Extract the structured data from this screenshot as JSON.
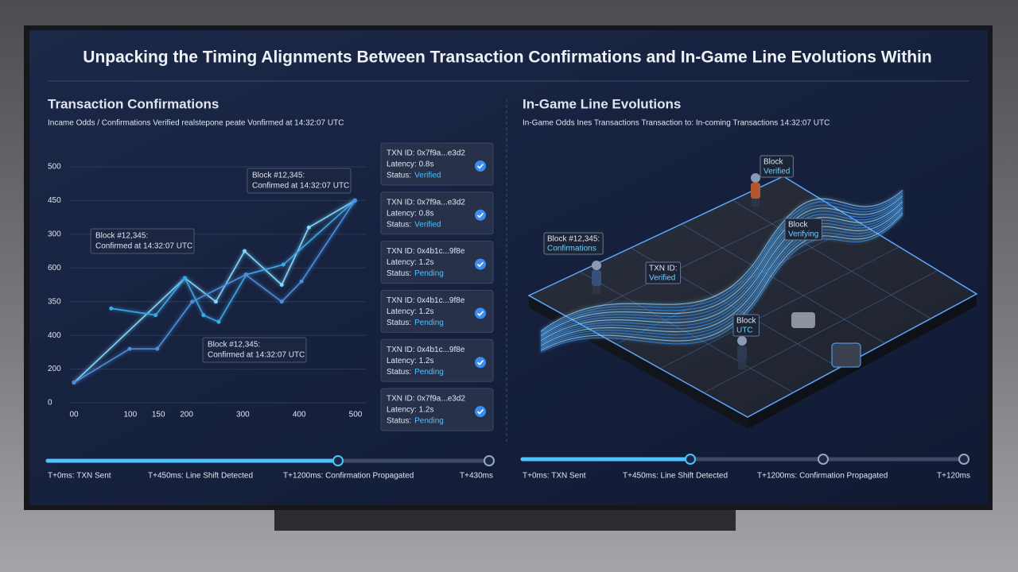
{
  "title": "Unpacking the Timing Alignments Between Transaction Confirmations and In-Game Line Evolutions Within",
  "left_panel": {
    "heading": "Transaction Confirmations",
    "subtitle": "Incame Odds / Confirmations Verified realstepone peate Vonfirmed at 14:32:07 UTC",
    "cards": [
      {
        "txn": "TXN ID: 0x7f9a...e3d2",
        "latency": "Latency: 0.8s",
        "status_label": "Status:",
        "status": "Verified"
      },
      {
        "txn": "TXN ID: 0x7f9a...e3d2",
        "latency": "Latency: 0.8s",
        "status_label": "Status:",
        "status": "Verified"
      },
      {
        "txn": "TXN ID: 0x4b1c...9f8e",
        "latency": "Latency: 1.2s",
        "status_label": "Status:",
        "status": "Pending"
      },
      {
        "txn": "TXN ID: 0x4b1c...9f8e",
        "latency": "Latency: 1.2s",
        "status_label": "Status:",
        "status": "Pending"
      },
      {
        "txn": "TXN ID: 0x4b1c...9f8e",
        "latency": "Latency: 1.2s",
        "status_label": "Status:",
        "status": "Pending"
      },
      {
        "txn": "TXN ID: 0x7f9a...e3d2",
        "latency": "Latency: 1.2s",
        "status_label": "Status:",
        "status": "Pending"
      }
    ],
    "timeline": [
      "T+0ms: TXN Sent",
      "T+450ms: Line Shift Detected",
      "T+1200ms: Confirmation Propagated",
      "T+430ms"
    ]
  },
  "chart_data": {
    "type": "line",
    "xlim": [
      0,
      500
    ],
    "xticks": [
      {
        "value": 0,
        "label": "00"
      },
      100,
      150,
      200,
      300,
      400,
      500
    ],
    "ylim": [
      0,
      7
    ],
    "yticks": [
      {
        "value": 0,
        "label": "0"
      },
      {
        "value": 1,
        "label": "200"
      },
      {
        "value": 2,
        "label": "400"
      },
      {
        "value": 3,
        "label": "350"
      },
      {
        "value": 4,
        "label": "600"
      },
      {
        "value": 5,
        "label": "300"
      },
      {
        "value": 6,
        "label": "450"
      },
      {
        "value": 7,
        "label": "500"
      }
    ],
    "grid": true,
    "series": [
      {
        "color": "#7fd8ff",
        "x": [
          0,
          197,
          252,
          303,
          369,
          417,
          499
        ],
        "values": [
          0.6,
          3.7,
          3.0,
          4.5,
          3.5,
          5.2,
          6.0
        ]
      },
      {
        "color": "#3fa7e8",
        "x": [
          66,
          145,
          197,
          230,
          257,
          306,
          372,
          499
        ],
        "values": [
          2.8,
          2.6,
          3.7,
          2.6,
          2.4,
          3.8,
          4.1,
          6.0
        ]
      },
      {
        "color": "#4d8ee0",
        "x": [
          0,
          99,
          148,
          210,
          305,
          369,
          404,
          499
        ],
        "values": [
          0.6,
          1.6,
          1.6,
          3.0,
          3.8,
          3.0,
          3.6,
          6.0
        ]
      }
    ],
    "annotations": [
      {
        "title": "Block #12,345:",
        "text": "Confirmed at 14:32:07 UTC"
      },
      {
        "title": "Block #12,345:",
        "text": "Confirmed at 14:32:07 UTC"
      },
      {
        "title": "Block #12,345:",
        "text": "Confirmed at 14:32:07 UTC"
      }
    ]
  },
  "right_panel": {
    "heading": "In-Game Line Evolutions",
    "subtitle": "In-Game Odds Ines Transactions Transaction to: In-coming Transactions 14:32:07 UTC",
    "labels": [
      {
        "line1": "Block",
        "line2": "Verified"
      },
      {
        "line1": "Block",
        "line2": "Verifying"
      },
      {
        "line1": "Block #12,345:",
        "line2": "Confirmations"
      },
      {
        "line1": "TXN ID:",
        "line2": "Verified"
      },
      {
        "line1": "Block",
        "line2": "UTC"
      }
    ],
    "timeline": [
      "T+0ms: TXN Sent",
      "T+450ms: Line Shift Detected",
      "T+1200ms: Confirmation Propagated",
      "T+120ms"
    ]
  }
}
